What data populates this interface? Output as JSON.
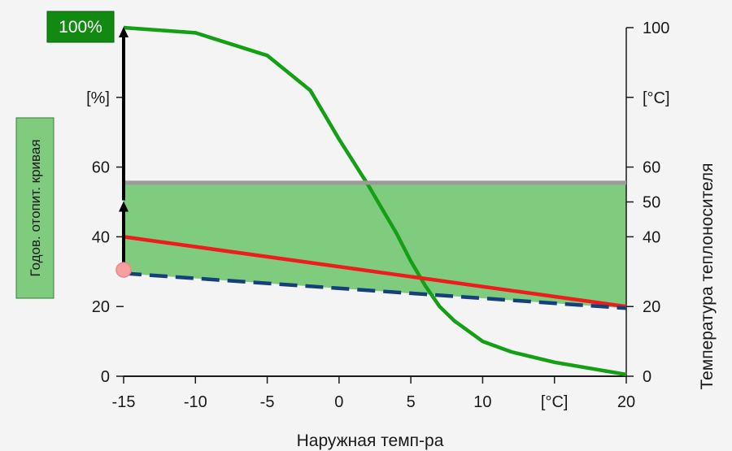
{
  "chart_data": {
    "type": "line",
    "xlabel": "Наружная темп-ра",
    "ylabel_right": "Температура теплоносителя",
    "side_box_label": "Годов. отопит. кривая",
    "badge_label": "100%",
    "x_ticks": [
      "-15",
      "-10",
      "-5",
      "0",
      "5",
      "10",
      "[°C]",
      "20"
    ],
    "x_tick_values": [
      -15,
      -10,
      -5,
      0,
      5,
      10,
      15,
      20
    ],
    "left_ticks": [
      "0",
      "20",
      "40",
      "60",
      "[%]"
    ],
    "left_tick_values": [
      0,
      20,
      40,
      60,
      80
    ],
    "right_ticks": [
      "0",
      "20",
      "40",
      "50",
      "60",
      "[°C]",
      "100"
    ],
    "right_tick_values": [
      0,
      20,
      40,
      50,
      60,
      80,
      100
    ],
    "xlim": [
      -15,
      20
    ],
    "ylim": [
      0,
      100
    ],
    "series": [
      {
        "color": "#14a014",
        "style": "solid",
        "x": [
          -15,
          -10,
          -5,
          -2,
          0,
          2,
          3,
          4,
          5,
          6,
          7,
          8,
          10,
          12,
          15,
          20
        ],
        "y": [
          100,
          98.5,
          92,
          82,
          68,
          55,
          48,
          41,
          33,
          26,
          20,
          16,
          10,
          7,
          4,
          0.5
        ]
      },
      {
        "color": "#ee1c1c",
        "style": "solid",
        "x": [
          -15,
          20
        ],
        "y": [
          40,
          20
        ]
      },
      {
        "color": "#16407a",
        "style": "dashed",
        "x": [
          -15,
          20
        ],
        "y": [
          29.5,
          19.5
        ]
      },
      {
        "color": "#9a9a9a",
        "style": "solid",
        "x": [
          -15,
          20
        ],
        "y": [
          55.5,
          55.5
        ]
      }
    ],
    "shaded_band": {
      "color": "#7fcc7f",
      "x": [
        -15,
        20
      ],
      "upper": [
        55.5,
        55.5
      ],
      "lower": [
        29.5,
        19.5
      ]
    },
    "colors": {
      "badge": "#128a12",
      "side_box": "#7fcc7f",
      "axis": "#1a1a1a",
      "marker": "#f4a0a0"
    }
  }
}
